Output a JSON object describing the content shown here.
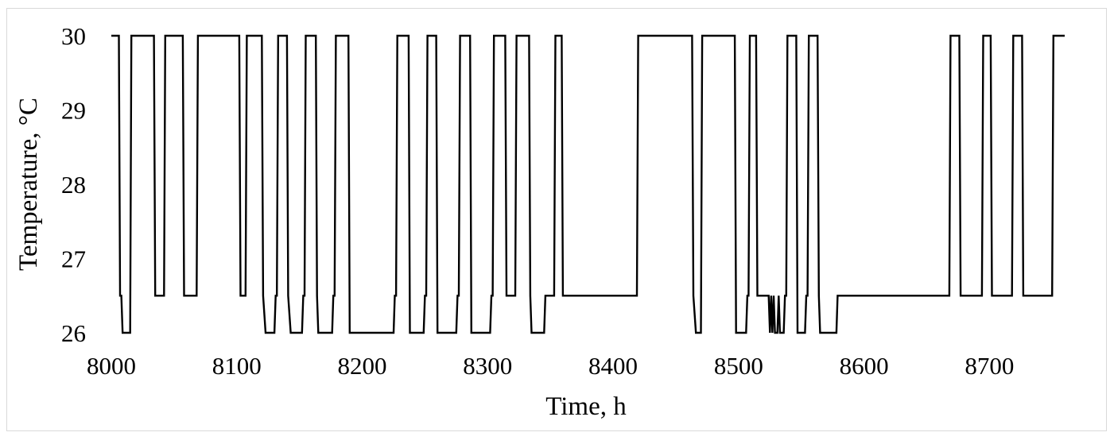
{
  "chart_data": {
    "type": "line",
    "title": "",
    "xlabel": "Time, h",
    "ylabel": "Temperature, °C",
    "xlim": [
      8000,
      8760
    ],
    "ylim": [
      26,
      30
    ],
    "x_ticks": [
      "8000",
      "8100",
      "8200",
      "8300",
      "8400",
      "8500",
      "8600",
      "8700"
    ],
    "y_ticks": [
      "26",
      "27",
      "28",
      "29",
      "30"
    ],
    "grid": false,
    "legend": "none",
    "line_color": "#000000",
    "series": [
      {
        "x": [
          8000,
          8006,
          8007,
          8008,
          8009,
          8010,
          8015,
          8016,
          8034,
          8035,
          8042,
          8043,
          8057,
          8058,
          8068,
          8069,
          8102,
          8103,
          8107,
          8108,
          8120,
          8121,
          8123,
          8124,
          8130,
          8131,
          8132,
          8133,
          8140,
          8141,
          8143,
          8144,
          8152,
          8153,
          8154,
          8155,
          8163,
          8164,
          8165,
          8166,
          8176,
          8177,
          8178,
          8179,
          8189,
          8190,
          8225,
          8226,
          8227,
          8228,
          8237,
          8238,
          8249,
          8250,
          8251,
          8252,
          8259,
          8260,
          8275,
          8276,
          8277,
          8278,
          8286,
          8287,
          8302,
          8303,
          8304,
          8305,
          8314,
          8315,
          8322,
          8323,
          8333,
          8334,
          8335,
          8336,
          8345,
          8346,
          8353,
          8354,
          8359,
          8360,
          8419,
          8420,
          8463,
          8464,
          8466,
          8467,
          8470,
          8471,
          8497,
          8498,
          8506,
          8507,
          8508,
          8509,
          8514,
          8515,
          8524,
          8525,
          8526,
          8527,
          8528,
          8529,
          8531,
          8532,
          8533,
          8534,
          8536,
          8537,
          8538,
          8539,
          8546,
          8547,
          8553,
          8554,
          8555,
          8556,
          8563,
          8564,
          8565,
          8566,
          8578,
          8579,
          8668,
          8669,
          8676,
          8677,
          8694,
          8695,
          8701,
          8702,
          8718,
          8719,
          8726,
          8727,
          8750,
          8751,
          8760
        ],
        "y": [
          30,
          30,
          26.5,
          26.5,
          26,
          26,
          26,
          30,
          30,
          26.5,
          26.5,
          30,
          30,
          26.5,
          26.5,
          30,
          30,
          26.5,
          26.5,
          30,
          30,
          26.5,
          26,
          26,
          26,
          26.5,
          26.5,
          30,
          30,
          26.5,
          26,
          26,
          26,
          26.5,
          26.5,
          30,
          30,
          26.5,
          26,
          26,
          26,
          26.5,
          26.5,
          30,
          30,
          26,
          26,
          26.5,
          26.5,
          30,
          30,
          26,
          26,
          26.5,
          26.5,
          30,
          30,
          26,
          26,
          26.5,
          26.5,
          30,
          30,
          26,
          26,
          26.5,
          26.5,
          30,
          30,
          26.5,
          26.5,
          30,
          30,
          26.5,
          26,
          26,
          26,
          26.5,
          26.5,
          30,
          30,
          26.5,
          26.5,
          30,
          30,
          26.5,
          26,
          26,
          26,
          30,
          30,
          26,
          26,
          26.5,
          26.5,
          30,
          30,
          26.5,
          26.5,
          26,
          26.5,
          26,
          26.5,
          26,
          26,
          26.5,
          26,
          26,
          26,
          26.5,
          26.5,
          30,
          30,
          26,
          26,
          26.5,
          26.5,
          30,
          30,
          26.5,
          26,
          26,
          26,
          26.5,
          26.5,
          30,
          30,
          26.5,
          26.5,
          30,
          30,
          26.5,
          26.5,
          30,
          30,
          26.5,
          26.5,
          30,
          30
        ]
      }
    ]
  }
}
